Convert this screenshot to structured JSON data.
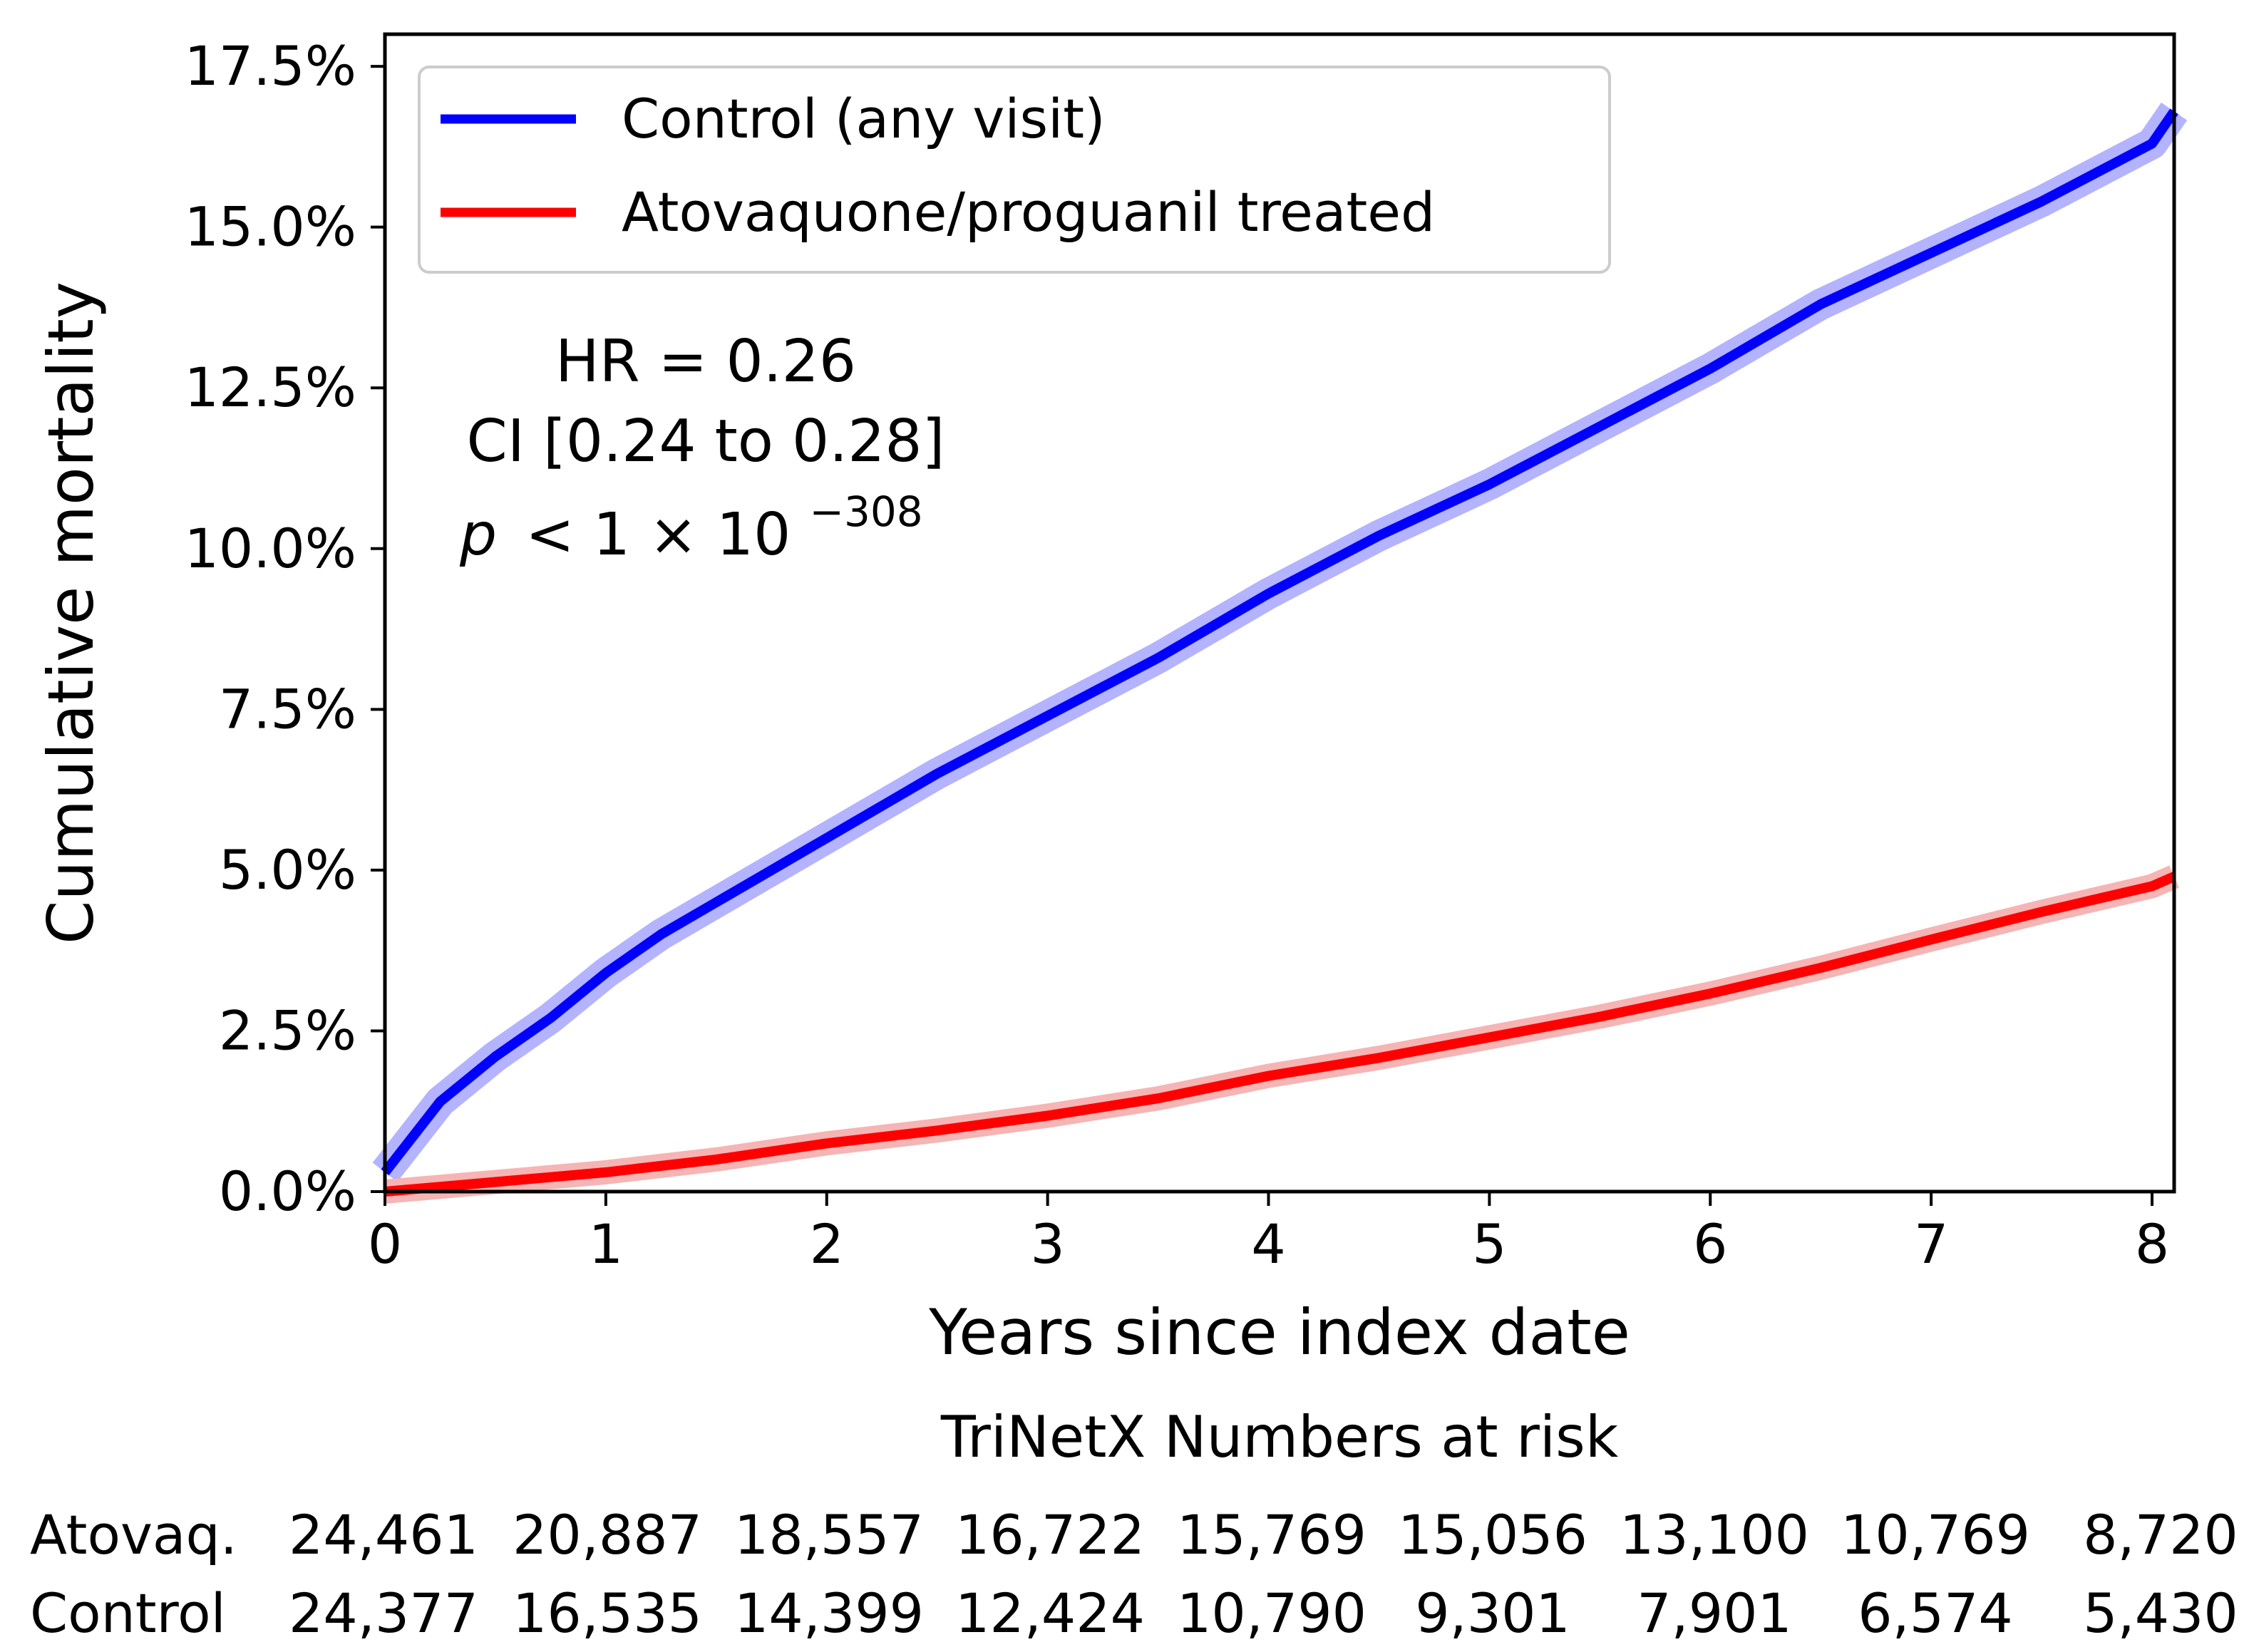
{
  "chart_data": {
    "type": "line",
    "xlabel": "Years since index date",
    "ylabel": "Cumulative mortality",
    "xlim": [
      0,
      8.1
    ],
    "ylim": [
      0,
      0.18
    ],
    "x_ticks": [
      "0",
      "1",
      "2",
      "3",
      "4",
      "5",
      "6",
      "7",
      "8"
    ],
    "y_ticks": [
      "0.0%",
      "2.5%",
      "5.0%",
      "7.5%",
      "10.0%",
      "12.5%",
      "15.0%",
      "17.5%"
    ],
    "legend_position": "upper-left",
    "grid": false,
    "series": [
      {
        "name": "Control (any visit)",
        "color": "#0000ff",
        "band_color": "#b3b3ff",
        "x": [
          0,
          0.25,
          0.5,
          0.75,
          1,
          1.25,
          1.5,
          1.75,
          2,
          2.5,
          3,
          3.5,
          4,
          4.5,
          5,
          5.5,
          6,
          6.5,
          7,
          7.5,
          8,
          8.1
        ],
        "y": [
          0.003,
          0.014,
          0.021,
          0.027,
          0.034,
          0.04,
          0.045,
          0.05,
          0.055,
          0.065,
          0.074,
          0.083,
          0.093,
          0.102,
          0.11,
          0.119,
          0.128,
          0.138,
          0.146,
          0.154,
          0.163,
          0.168
        ]
      },
      {
        "name": "Atovaquone/proguanil treated",
        "color": "#ff0000",
        "band_color": "#f5b5b5",
        "x": [
          0,
          0.5,
          1,
          1.5,
          2,
          2.5,
          3,
          3.5,
          4,
          4.5,
          5,
          5.5,
          6,
          6.5,
          7,
          7.5,
          8,
          8.1
        ],
        "y": [
          0,
          0.0015,
          0.003,
          0.005,
          0.0075,
          0.0095,
          0.0118,
          0.0145,
          0.018,
          0.0208,
          0.024,
          0.0272,
          0.0308,
          0.0348,
          0.0392,
          0.0435,
          0.0475,
          0.049
        ]
      }
    ],
    "annotation": {
      "hr": "HR = 0.26",
      "ci": "CI [0.24 to 0.28]",
      "p_symbol": "p",
      "p_rel": "< 1 × 10",
      "p_exp": "−308"
    },
    "risk_table": {
      "title": "TriNetX Numbers at risk",
      "rows": [
        {
          "label": "Atovaq.",
          "values": [
            "24,461",
            "20,887",
            "18,557",
            "16,722",
            "15,769",
            "15,056",
            "13,100",
            "10,769",
            "8,720"
          ]
        },
        {
          "label": "Control",
          "values": [
            "24,377",
            "16,535",
            "14,399",
            "12,424",
            "10,790",
            "9,301",
            "7,901",
            "6,574",
            "5,430"
          ]
        }
      ]
    }
  }
}
